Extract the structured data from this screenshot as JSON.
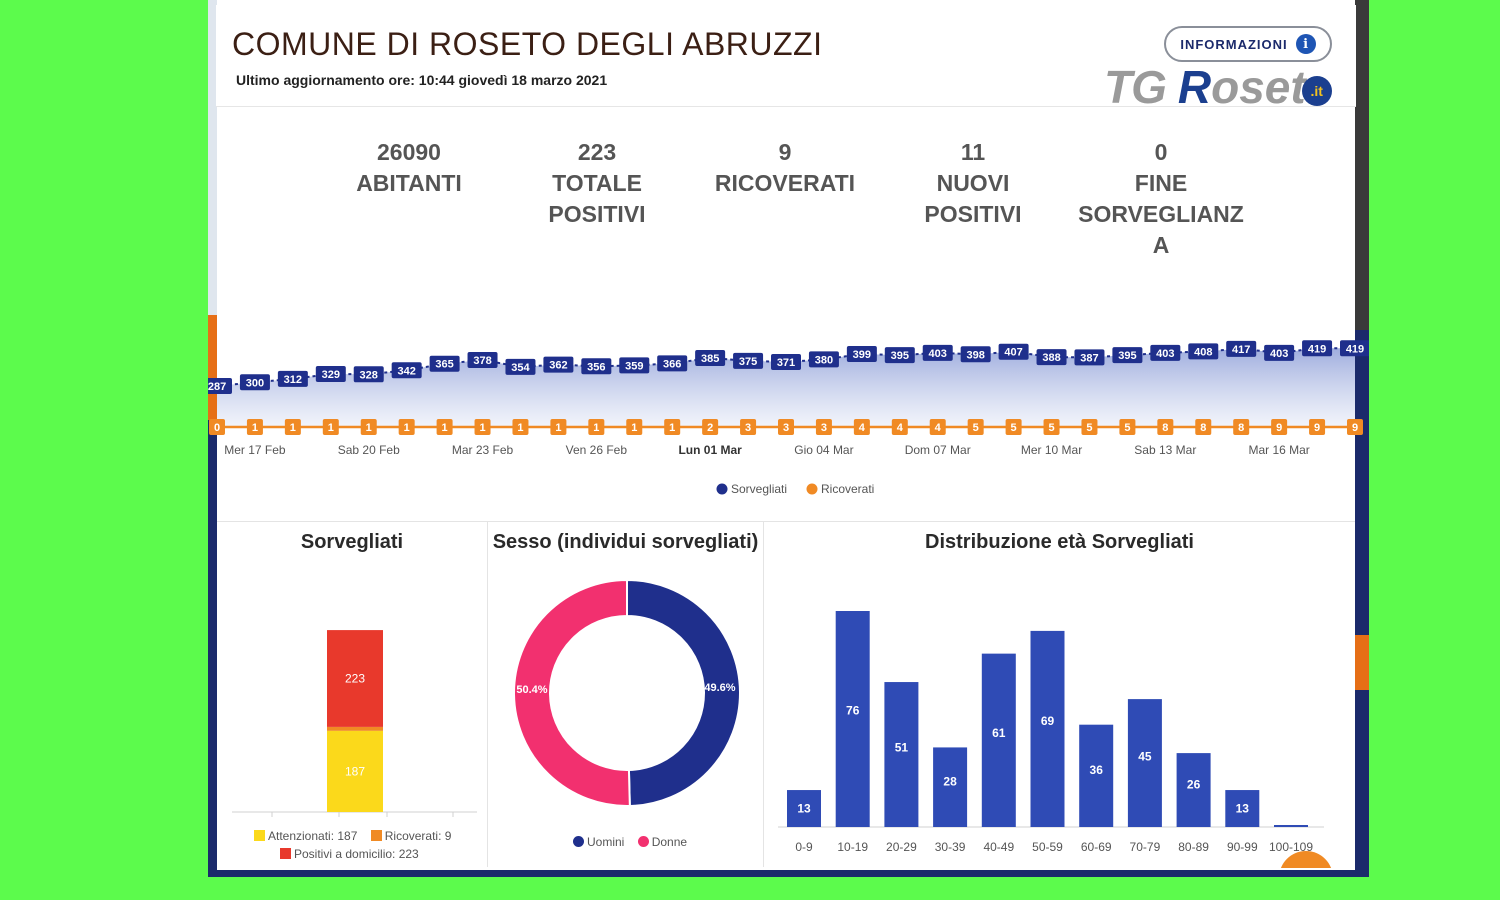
{
  "header": {
    "title": "COMUNE DI ROSETO DEGLI ABRUZZI",
    "updated": "Ultimo aggiornamento ore: 10:44 giovedì 18 marzo 2021",
    "info_button": "INFORMAZIONI",
    "info_icon": "info-icon",
    "logo_tg": "TG",
    "logo_r": "R",
    "logo_rest": "oset",
    "logo_badge": ".it"
  },
  "stats": [
    {
      "value": "26090",
      "label": "ABITANTI"
    },
    {
      "value": "223",
      "label": "TOTALE POSITIVI"
    },
    {
      "value": "9",
      "label": "RICOVERATI"
    },
    {
      "value": "11",
      "label": "NUOVI POSITIVI"
    },
    {
      "value": "0",
      "label": "FINE SORVEGLIANZ A"
    }
  ],
  "colors": {
    "navy": "#1f2f8c",
    "orange": "#f08a24",
    "yellow": "#fbd91b",
    "red": "#e8392c",
    "pink": "#f2306f",
    "bar_blue": "#2f4bb5"
  },
  "timeline": {
    "sorvegliati": [
      287,
      300,
      312,
      329,
      328,
      342,
      365,
      378,
      354,
      362,
      356,
      359,
      366,
      385,
      375,
      371,
      380,
      399,
      395,
      403,
      398,
      407,
      388,
      387,
      395,
      403,
      408,
      417,
      403,
      419,
      419
    ],
    "ricoverati": [
      0,
      1,
      1,
      1,
      1,
      1,
      1,
      1,
      1,
      1,
      1,
      1,
      1,
      2,
      3,
      3,
      3,
      4,
      4,
      4,
      5,
      5,
      5,
      5,
      5,
      8,
      8,
      8,
      9,
      9,
      9
    ],
    "date_labels": [
      "Mer 17 Feb",
      "Sab 20 Feb",
      "Mar 23 Feb",
      "Ven 26 Feb",
      "Lun 01 Mar",
      "Gio 04 Mar",
      "Dom 07 Mar",
      "Mer 10 Mar",
      "Sab 13 Mar",
      "Mar 16 Mar"
    ],
    "bold_label_index": 4,
    "legend": [
      "Sorvegliati",
      "Ricoverati"
    ]
  },
  "sorvegliati_panel": {
    "title": "Sorvegliati",
    "attenzionati": 187,
    "ricoverati": 9,
    "positivi_domicilio": 223,
    "legend": [
      "Attenzionati: 187",
      "Ricoverati: 9",
      "Positivi a domicilio: 223"
    ]
  },
  "sesso_panel": {
    "title": "Sesso (individui sorvegliati)",
    "uomini_pct": 49.6,
    "donne_pct": 50.4,
    "uomini_label": "49.6%",
    "donne_label": "50.4%",
    "legend": [
      "Uomini",
      "Donne"
    ]
  },
  "chart_data": {
    "type": "bar",
    "title": "Distribuzione età Sorvegliati",
    "categories": [
      "0-9",
      "10-19",
      "20-29",
      "30-39",
      "40-49",
      "50-59",
      "60-69",
      "70-79",
      "80-89",
      "90-99",
      "100-109"
    ],
    "values": [
      13,
      76,
      51,
      28,
      61,
      69,
      36,
      45,
      26,
      13,
      0
    ],
    "xlabel": "",
    "ylabel": "",
    "legend": "none",
    "grid": false
  }
}
